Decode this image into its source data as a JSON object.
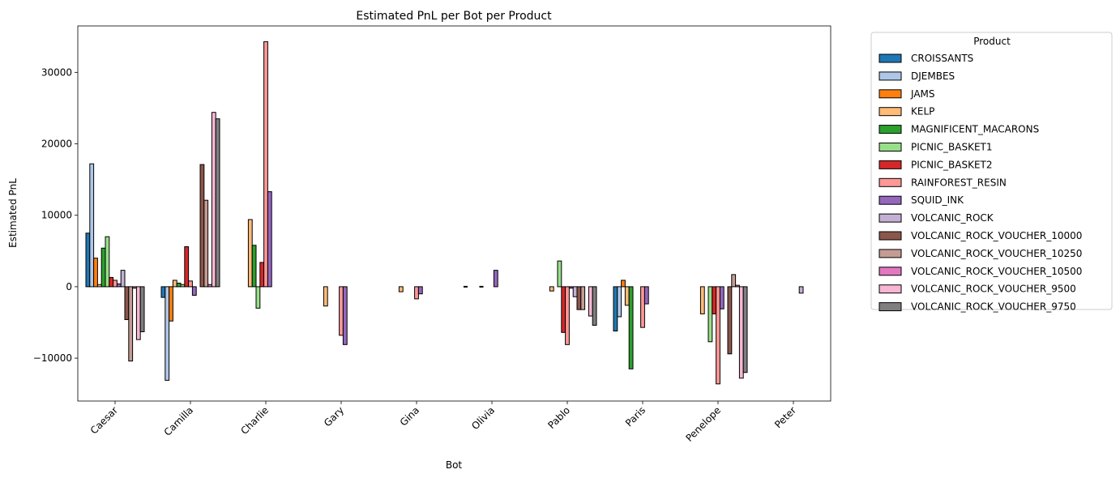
{
  "chart_data": {
    "type": "bar",
    "title": "Estimated PnL per Bot per Product",
    "xlabel": "Bot",
    "ylabel": "Estimated PnL",
    "ylim": [
      -16000,
      36500
    ],
    "yticks": [
      -10000,
      0,
      10000,
      20000,
      30000
    ],
    "ytick_labels": [
      "−10000",
      "0",
      "10000",
      "20000",
      "30000"
    ],
    "grid": false,
    "legend": {
      "title": "Product",
      "placement": "outside-right"
    },
    "categories": [
      "Caesar",
      "Camilla",
      "Charlie",
      "Gary",
      "Gina",
      "Olivia",
      "Pablo",
      "Paris",
      "Penelope",
      "Peter"
    ],
    "series": [
      {
        "name": "CROISSANTS",
        "color": "#1f77b4",
        "values": [
          7500,
          -1500,
          0,
          0,
          0,
          0,
          0,
          -6200,
          0,
          0
        ]
      },
      {
        "name": "DJEMBES",
        "color": "#aec7e8",
        "values": [
          17200,
          -13100,
          0,
          0,
          0,
          0,
          0,
          -4200,
          0,
          0
        ]
      },
      {
        "name": "JAMS",
        "color": "#ff7f0e",
        "values": [
          4000,
          -4800,
          0,
          0,
          0,
          0,
          0,
          900,
          0,
          0
        ]
      },
      {
        "name": "KELP",
        "color": "#ffbb78",
        "values": [
          300,
          900,
          9400,
          -2700,
          -700,
          0,
          -600,
          -2600,
          -3800,
          0
        ]
      },
      {
        "name": "MAGNIFICENT_MACARONS",
        "color": "#2ca02c",
        "values": [
          5400,
          500,
          5800,
          0,
          0,
          0,
          0,
          -11500,
          0,
          0
        ]
      },
      {
        "name": "PICNIC_BASKET1",
        "color": "#98df8a",
        "values": [
          7000,
          300,
          -3000,
          0,
          0,
          0,
          3600,
          0,
          -7700,
          0
        ]
      },
      {
        "name": "PICNIC_BASKET2",
        "color": "#d62728",
        "values": [
          1300,
          5600,
          3400,
          0,
          0,
          0,
          -6400,
          0,
          -3800,
          0
        ]
      },
      {
        "name": "RAINFOREST_RESIN",
        "color": "#ff9896",
        "values": [
          900,
          800,
          34300,
          -6800,
          -1700,
          0,
          -8100,
          -5700,
          -13600,
          0
        ]
      },
      {
        "name": "SQUID_INK",
        "color": "#9467bd",
        "values": [
          400,
          -1200,
          13300,
          -8100,
          -1000,
          2300,
          -200,
          -2400,
          -3100,
          0
        ]
      },
      {
        "name": "VOLCANIC_ROCK",
        "color": "#c5b0d5",
        "values": [
          2300,
          0,
          0,
          0,
          0,
          0,
          -1400,
          0,
          0,
          -900
        ]
      },
      {
        "name": "VOLCANIC_ROCK_VOUCHER_10000",
        "color": "#8c564b",
        "values": [
          -4600,
          17100,
          0,
          0,
          0,
          0,
          -3200,
          0,
          -9400,
          0
        ]
      },
      {
        "name": "VOLCANIC_ROCK_VOUCHER_10250",
        "color": "#c49c94",
        "values": [
          -10400,
          12100,
          0,
          0,
          0,
          0,
          -3200,
          0,
          1700,
          0
        ]
      },
      {
        "name": "VOLCANIC_ROCK_VOUCHER_10500",
        "color": "#e377c2",
        "values": [
          -200,
          300,
          0,
          0,
          0,
          0,
          0,
          0,
          200,
          0
        ]
      },
      {
        "name": "VOLCANIC_ROCK_VOUCHER_9500",
        "color": "#f7b6d2",
        "values": [
          -7400,
          24400,
          0,
          0,
          0,
          0,
          -4100,
          0,
          -12800,
          0
        ]
      },
      {
        "name": "VOLCANIC_ROCK_VOUCHER_9750",
        "color": "#7f7f7f",
        "values": [
          -6300,
          23500,
          0,
          0,
          0,
          0,
          -5400,
          0,
          -12000,
          0
        ]
      }
    ],
    "zero_markers": {
      "category": "Olivia",
      "offsets": [
        -0.35,
        -0.14
      ]
    }
  }
}
